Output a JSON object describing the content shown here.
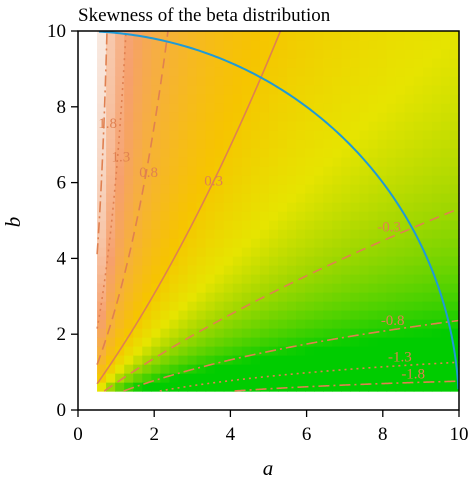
{
  "chart_data": {
    "type": "heatmap",
    "title": "Skewness of the beta distribution",
    "xlabel": "a",
    "ylabel": "b",
    "xlim": [
      0,
      10
    ],
    "ylim": [
      0,
      10
    ],
    "x_ticks": [
      0,
      2,
      4,
      6,
      8,
      10
    ],
    "y_ticks": [
      0,
      2,
      4,
      6,
      8,
      10
    ],
    "x_tick_labels": [
      "0",
      "2",
      "4",
      "6",
      "8",
      "10"
    ],
    "y_tick_labels": [
      "0",
      "2",
      "4",
      "6",
      "8",
      "10"
    ],
    "grid": false,
    "legend": "none",
    "heatmap": {
      "quantity": "skewness",
      "a_range": [
        0.5,
        10
      ],
      "b_range": [
        0.5,
        10
      ],
      "cells": 40,
      "colors": {
        "strong_positive": "#f8f6f6",
        "positive": "#f6a06c",
        "mild_positive": "#f6c400",
        "zero": "#e6e400",
        "mild_negative": "#a8d800",
        "negative": "#00cc00"
      }
    },
    "contours": [
      {
        "level": 1.8,
        "label": "1.8",
        "style": "dashdot",
        "color": "#e08050"
      },
      {
        "level": 1.3,
        "label": "1.3",
        "style": "dotted",
        "color": "#e08050"
      },
      {
        "level": 0.8,
        "label": "0.8",
        "style": "dashed",
        "color": "#e08050"
      },
      {
        "level": 0.3,
        "label": "0.3",
        "style": "solid",
        "color": "#e08050"
      },
      {
        "level": -0.3,
        "label": "-0.3",
        "style": "dashed",
        "color": "#e08050"
      },
      {
        "level": -0.8,
        "label": "-0.8",
        "style": "dashdot",
        "color": "#e08050"
      },
      {
        "level": -1.3,
        "label": "-1.3",
        "style": "dotted",
        "color": "#e08050"
      },
      {
        "level": -1.8,
        "label": "-1.8",
        "style": "dashdot",
        "color": "#e08050"
      }
    ],
    "arc": {
      "center": [
        0,
        0
      ],
      "radius": 10,
      "color": "#1f9ad6"
    }
  }
}
